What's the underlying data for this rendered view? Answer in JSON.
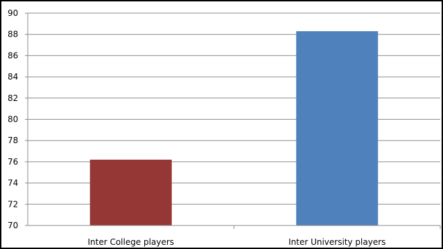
{
  "chart_data": {
    "type": "bar",
    "title": "",
    "xlabel": "",
    "ylabel": "",
    "categories": [
      "Inter College players",
      "Inter University players"
    ],
    "values": [
      76.2,
      88.3
    ],
    "colors": [
      "#953735",
      "#4f81bd"
    ],
    "ylim": [
      70,
      90
    ],
    "yticks": [
      "70",
      "72",
      "74",
      "76",
      "78",
      "80",
      "82",
      "84",
      "86",
      "88",
      "90"
    ],
    "grid": "horizontal",
    "legend": "none"
  }
}
